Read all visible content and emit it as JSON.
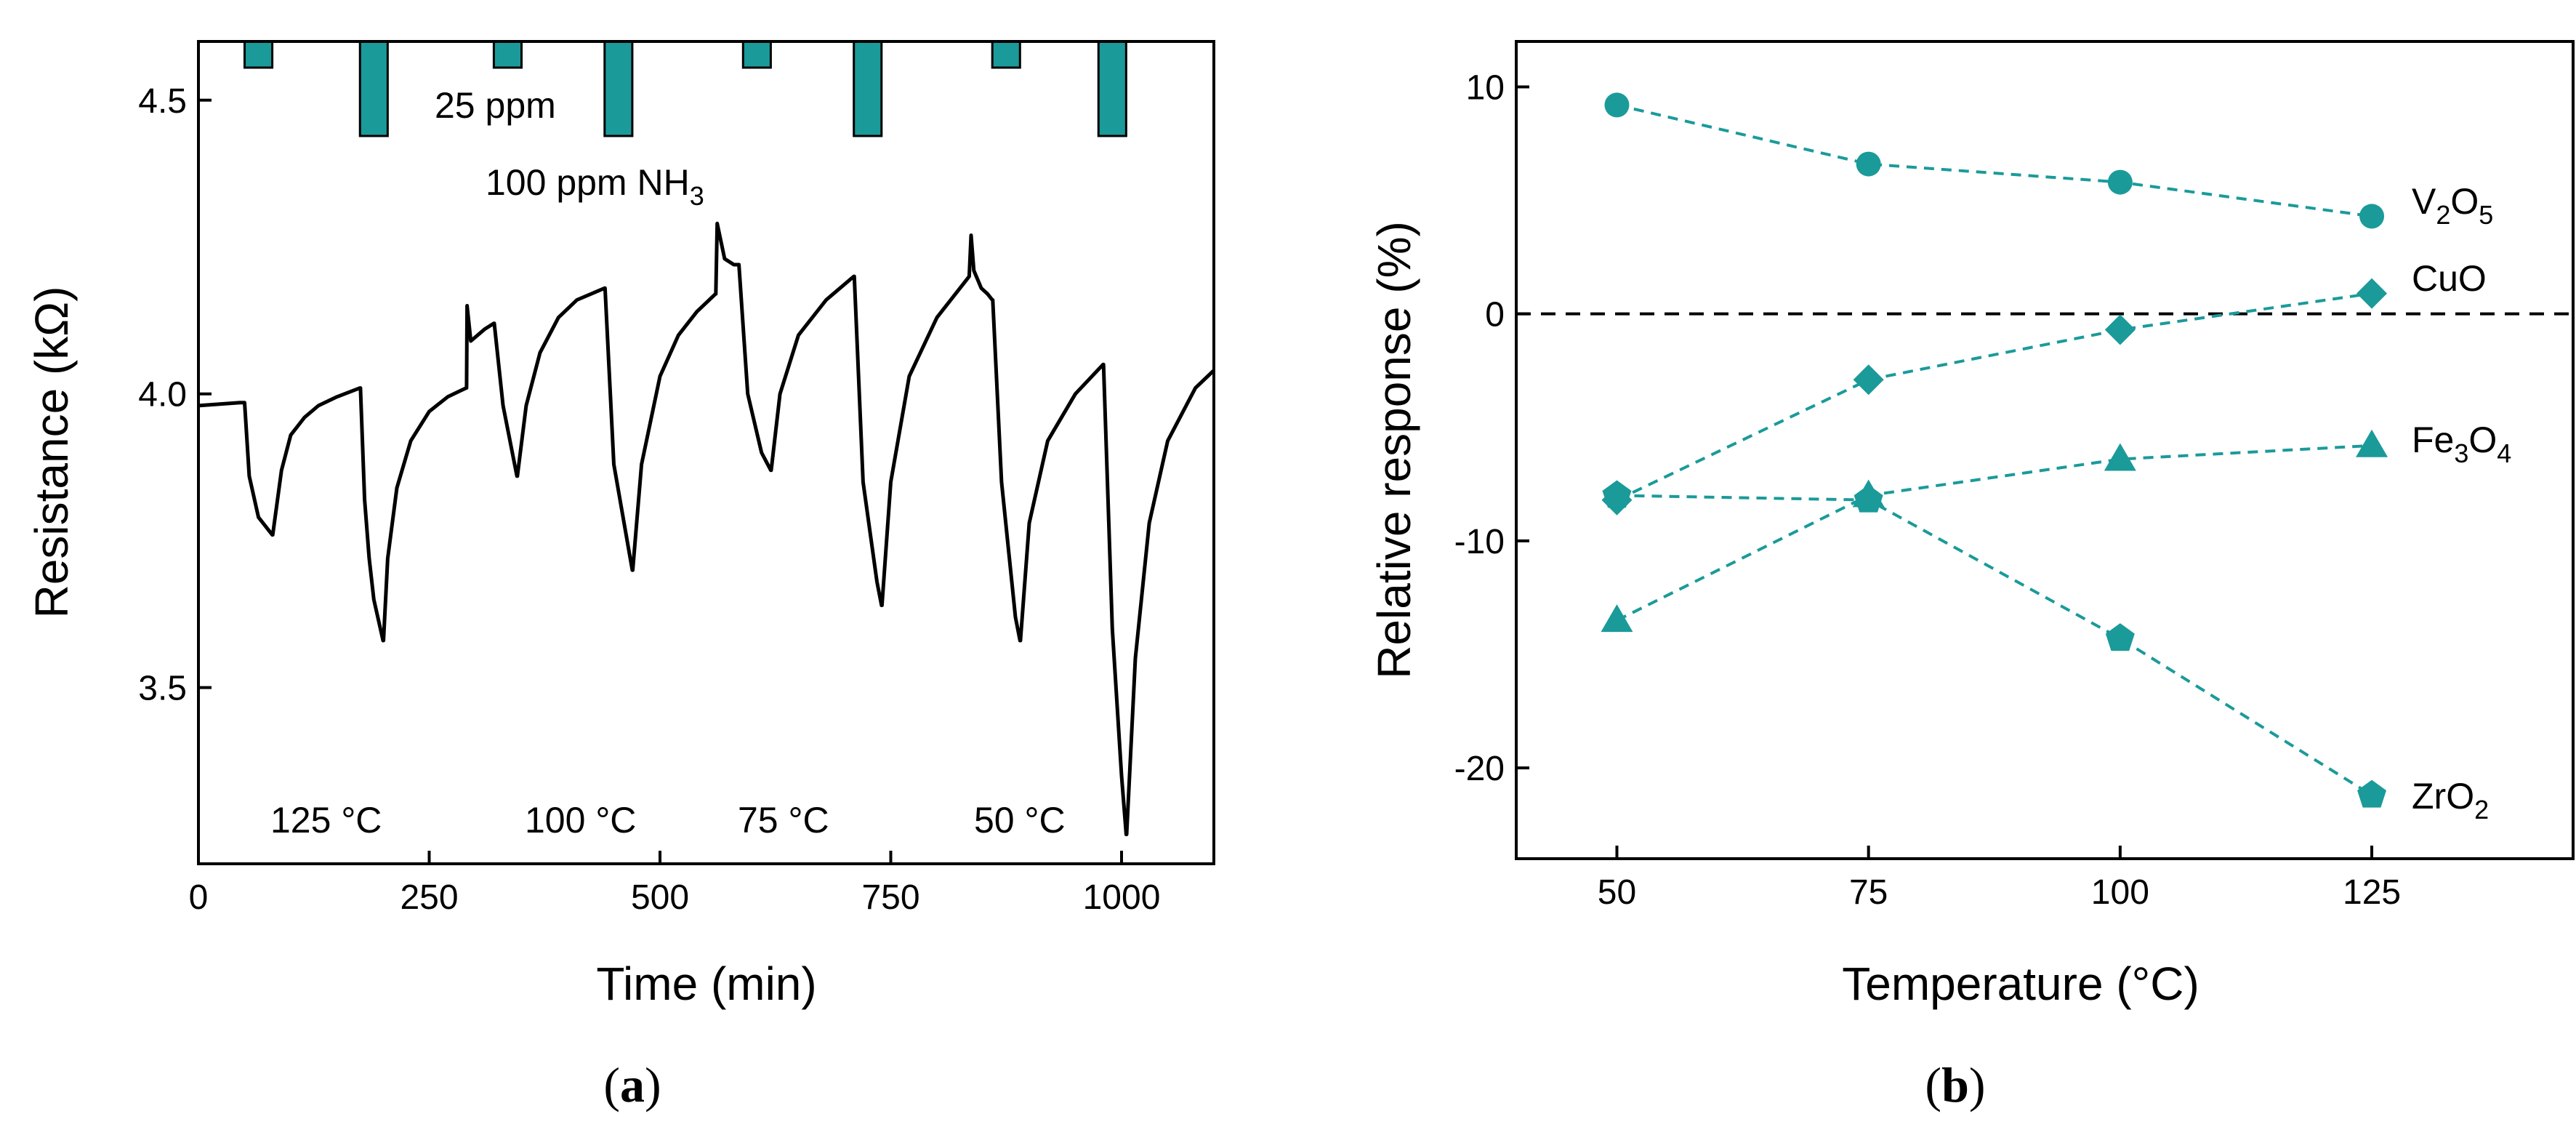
{
  "colors": {
    "teal": "#1b9a9a",
    "axis": "#000000",
    "curve": "#000000"
  },
  "chart_data": [
    {
      "panel": "a",
      "type": "line",
      "caption": "a",
      "xlabel": "Time (min)",
      "ylabel": "Resistance (kΩ)",
      "xlim": [
        0,
        1100
      ],
      "ylim": [
        3.2,
        4.6
      ],
      "xticks": [
        0,
        250,
        500,
        750,
        1000
      ],
      "yticks": [
        3.5,
        4.0,
        4.5
      ],
      "xtick_labels": [
        "0",
        "250",
        "500",
        "750",
        "1000"
      ],
      "ytick_labels": [
        "3.5",
        "4.0",
        "4.5"
      ],
      "series": [
        {
          "name": "Resistance",
          "x": [
            0,
            45,
            48,
            50,
            55,
            65,
            80,
            80.5,
            90,
            100,
            115,
            130,
            150,
            175,
            175.5,
            180,
            185,
            190,
            200,
            200.5,
            205,
            215,
            230,
            250,
            270,
            290,
            290.5,
            291,
            295,
            310,
            320,
            320.5,
            330,
            345,
            345.5,
            355,
            370,
            390,
            410,
            440,
            440.5,
            450,
            470,
            470.5,
            480,
            500,
            520,
            540,
            560,
            560.5,
            562,
            570,
            580,
            585,
            585.5,
            595,
            610,
            620,
            620.5,
            630,
            650,
            680,
            710,
            710.5,
            720,
            735,
            740,
            740.5,
            750,
            770,
            800,
            830,
            835,
            837,
            840,
            848,
            855,
            860,
            860.5,
            870,
            885,
            890,
            890.5,
            900,
            920,
            950,
            980,
            980.5,
            990,
            1000,
            1005,
            1005.5,
            1015,
            1030,
            1050,
            1080,
            1100
          ],
          "y": [
            3.98,
            3.985,
            3.985,
            3.985,
            3.86,
            3.79,
            3.76,
            3.76,
            3.87,
            3.93,
            3.96,
            3.98,
            3.995,
            4.01,
            4.01,
            3.82,
            3.72,
            3.65,
            3.58,
            3.58,
            3.72,
            3.84,
            3.92,
            3.97,
            3.995,
            4.01,
            4.01,
            4.15,
            4.09,
            4.11,
            4.12,
            4.12,
            3.98,
            3.86,
            3.86,
            3.98,
            4.07,
            4.13,
            4.16,
            4.18,
            4.18,
            3.88,
            3.7,
            3.7,
            3.88,
            4.03,
            4.1,
            4.14,
            4.17,
            4.17,
            4.29,
            4.23,
            4.22,
            4.22,
            4.22,
            4.0,
            3.9,
            3.87,
            3.87,
            4.0,
            4.1,
            4.16,
            4.2,
            4.2,
            3.85,
            3.68,
            3.64,
            3.64,
            3.85,
            4.03,
            4.13,
            4.19,
            4.2,
            4.27,
            4.21,
            4.18,
            4.17,
            4.16,
            4.16,
            3.85,
            3.62,
            3.58,
            3.58,
            3.78,
            3.92,
            4.0,
            4.05,
            4.05,
            3.6,
            3.35,
            3.25,
            3.25,
            3.55,
            3.78,
            3.92,
            4.01,
            4.04
          ]
        }
      ],
      "pulses": [
        {
          "start": 50,
          "end": 80,
          "concentration": "25 ppm"
        },
        {
          "start": 175,
          "end": 205,
          "concentration": "100 ppm"
        },
        {
          "start": 320,
          "end": 350,
          "concentration": "25 ppm"
        },
        {
          "start": 440,
          "end": 470,
          "concentration": "100 ppm"
        },
        {
          "start": 590,
          "end": 620,
          "concentration": "25 ppm"
        },
        {
          "start": 710,
          "end": 740,
          "concentration": "100 ppm"
        },
        {
          "start": 860,
          "end": 890,
          "concentration": "25 ppm"
        },
        {
          "start": 975,
          "end": 1005,
          "concentration": "100 ppm"
        }
      ],
      "annotations": {
        "low_label": "25 ppm",
        "high_label_main": "100 ppm NH",
        "high_label_sub": "3",
        "temperatures": [
          "125 °C",
          "100 °C",
          "75 °C",
          "50 °C"
        ]
      }
    },
    {
      "panel": "b",
      "type": "scatter",
      "caption": "b",
      "xlabel": "Temperature (°C)",
      "ylabel": "Relative response (%)",
      "xlim": [
        40,
        145
      ],
      "ylim": [
        -24,
        12
      ],
      "xticks": [
        50,
        75,
        100,
        125
      ],
      "yticks": [
        -20,
        -10,
        0,
        10
      ],
      "xtick_labels": [
        "50",
        "75",
        "100",
        "125"
      ],
      "ytick_labels": [
        "-20",
        "-10",
        "0",
        "10"
      ],
      "zero_line": true,
      "x": [
        50,
        75,
        100,
        125
      ],
      "series": [
        {
          "name": "V2O5",
          "label_main": "V",
          "label_parts": [
            "V",
            "2",
            "O",
            "5"
          ],
          "marker": "circle",
          "values": [
            9.2,
            6.6,
            5.8,
            4.3
          ]
        },
        {
          "name": "CuO",
          "label_main": "CuO",
          "label_parts": [
            "CuO"
          ],
          "marker": "diamond",
          "values": [
            -8.2,
            -2.9,
            -0.7,
            0.9
          ]
        },
        {
          "name": "Fe3O4",
          "label_main": "Fe",
          "label_parts": [
            "Fe",
            "3",
            "O",
            "4"
          ],
          "marker": "triangle",
          "values": [
            -13.5,
            -8.0,
            -6.4,
            -5.8
          ]
        },
        {
          "name": "ZrO2",
          "label_main": "ZrO",
          "label_parts": [
            "ZrO",
            "2"
          ],
          "marker": "pentagon",
          "values": [
            -8.0,
            -8.2,
            -14.3,
            -21.2
          ]
        }
      ]
    }
  ]
}
